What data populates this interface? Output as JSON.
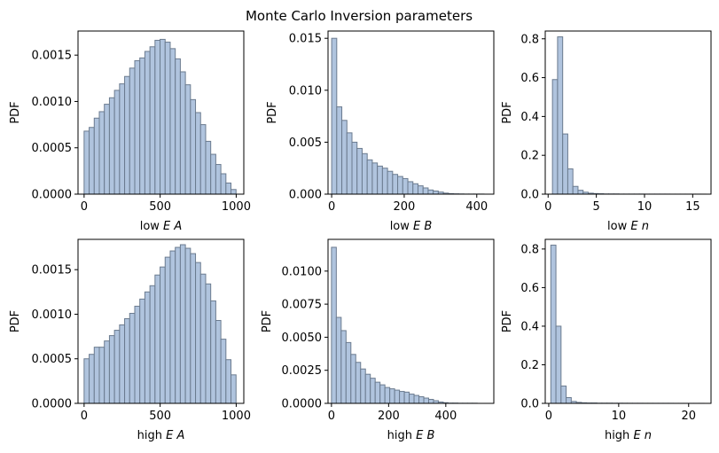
{
  "figure": {
    "title": "Monte Carlo Inversion parameters"
  },
  "style": {
    "bar_fill": "#b0c4de",
    "bar_edge": "#6b7b8f",
    "axis_color": "#000000"
  },
  "chart_data": [
    {
      "type": "bar",
      "ylabel": "PDF",
      "xlabel_plain": "low ",
      "xlabel_italic": "E A",
      "xlim": [
        -40,
        1050
      ],
      "ylim": [
        0,
        0.00176
      ],
      "xticks": [
        0,
        500,
        1000
      ],
      "xtick_labels": [
        "0",
        "500",
        "1000"
      ],
      "yticks": [
        0,
        0.0005,
        0.001,
        0.0015
      ],
      "ytick_labels": [
        "0.0000",
        "0.0005",
        "0.0010",
        "0.0015"
      ],
      "bin_start": 0,
      "bin_width": 33.3,
      "values": [
        0.00068,
        0.00072,
        0.00082,
        0.00089,
        0.00097,
        0.00104,
        0.00112,
        0.00119,
        0.00127,
        0.00136,
        0.00144,
        0.00147,
        0.00154,
        0.00159,
        0.00166,
        0.00167,
        0.00164,
        0.00157,
        0.00146,
        0.00132,
        0.00118,
        0.00102,
        0.00088,
        0.00075,
        0.00057,
        0.00043,
        0.00032,
        0.00022,
        0.00012,
        5e-05
      ]
    },
    {
      "type": "bar",
      "ylabel": "PDF",
      "xlabel_plain": "low ",
      "xlabel_italic": "E B",
      "xlim": [
        -10,
        447
      ],
      "ylim": [
        0,
        0.0157
      ],
      "xticks": [
        0,
        200,
        400
      ],
      "xtick_labels": [
        "0",
        "200",
        "400"
      ],
      "yticks": [
        0,
        0.005,
        0.01,
        0.015
      ],
      "ytick_labels": [
        "0.000",
        "0.005",
        "0.010",
        "0.015"
      ],
      "bin_start": 0,
      "bin_width": 14,
      "values": [
        0.015,
        0.0084,
        0.0071,
        0.0059,
        0.005,
        0.0044,
        0.0039,
        0.0033,
        0.003,
        0.0027,
        0.0025,
        0.0022,
        0.0019,
        0.0017,
        0.0015,
        0.0012,
        0.001,
        0.0008,
        0.0006,
        0.0004,
        0.0003,
        0.0002,
        0.0001,
        5e-05,
        3e-05,
        2e-05,
        1e-05,
        1e-05,
        1e-05,
        1e-05
      ]
    },
    {
      "type": "bar",
      "ylabel": "PDF",
      "xlabel_plain": "low ",
      "xlabel_italic": "E n",
      "xlim": [
        -0.3,
        16.9
      ],
      "ylim": [
        0,
        0.84
      ],
      "xticks": [
        0,
        5,
        10,
        15
      ],
      "xtick_labels": [
        "0",
        "5",
        "10",
        "15"
      ],
      "yticks": [
        0,
        0.2,
        0.4,
        0.6,
        0.8
      ],
      "ytick_labels": [
        "0.0",
        "0.2",
        "0.4",
        "0.6",
        "0.8"
      ],
      "bin_start": 0.45,
      "bin_width": 0.53,
      "values": [
        0.59,
        0.81,
        0.31,
        0.13,
        0.04,
        0.02,
        0.01,
        0.005,
        0.003,
        0.002,
        0.001,
        0.001,
        0.001,
        0.0005,
        0.0005,
        0.0005,
        0.0005,
        0.0005,
        0.0003,
        0.0003,
        0.0003,
        0.0003,
        0.0003,
        0.0002,
        0.0002,
        0.0002,
        0.0002,
        0.0002,
        0.0002,
        0.0002
      ]
    },
    {
      "type": "bar",
      "ylabel": "PDF",
      "xlabel_plain": "high ",
      "xlabel_italic": "E A",
      "xlim": [
        -40,
        1050
      ],
      "ylim": [
        0,
        0.00184
      ],
      "xticks": [
        0,
        500,
        1000
      ],
      "xtick_labels": [
        "0",
        "500",
        "1000"
      ],
      "yticks": [
        0,
        0.0005,
        0.001,
        0.0015
      ],
      "ytick_labels": [
        "0.0000",
        "0.0005",
        "0.0010",
        "0.0015"
      ],
      "bin_start": 0,
      "bin_width": 33.3,
      "values": [
        0.0005,
        0.00055,
        0.00063,
        0.00063,
        0.0007,
        0.00076,
        0.00082,
        0.00088,
        0.00095,
        0.00101,
        0.00109,
        0.00117,
        0.00125,
        0.00132,
        0.00144,
        0.00153,
        0.00164,
        0.00171,
        0.00175,
        0.00178,
        0.00174,
        0.00168,
        0.00158,
        0.00145,
        0.00134,
        0.00115,
        0.00093,
        0.00072,
        0.00049,
        0.00032
      ]
    },
    {
      "type": "bar",
      "ylabel": "PDF",
      "xlabel_plain": "high ",
      "xlabel_italic": "E B",
      "xlim": [
        -12,
        568
      ],
      "ylim": [
        0,
        0.0124
      ],
      "xticks": [
        0,
        200,
        400
      ],
      "xtick_labels": [
        "0",
        "200",
        "400"
      ],
      "yticks": [
        0,
        0.0025,
        0.005,
        0.0075,
        0.01
      ],
      "ytick_labels": [
        "0.0000",
        "0.0025",
        "0.0050",
        "0.0075",
        "0.0100"
      ],
      "bin_start": 0,
      "bin_width": 17,
      "values": [
        0.0118,
        0.0065,
        0.0055,
        0.0046,
        0.0037,
        0.0031,
        0.0026,
        0.0022,
        0.0019,
        0.0016,
        0.0014,
        0.0012,
        0.0011,
        0.001,
        0.0009,
        0.00085,
        0.0007,
        0.0006,
        0.0005,
        0.0004,
        0.0003,
        0.0002,
        0.0001,
        5e-05,
        2e-05,
        2e-05,
        1e-05,
        1e-05,
        1e-05,
        1e-05
      ]
    },
    {
      "type": "bar",
      "ylabel": "PDF",
      "xlabel_plain": "high ",
      "xlabel_italic": "E n",
      "xlim": [
        -0.5,
        23.2
      ],
      "ylim": [
        0,
        0.85
      ],
      "xticks": [
        0,
        10,
        20
      ],
      "xtick_labels": [
        "0",
        "10",
        "20"
      ],
      "yticks": [
        0,
        0.2,
        0.4,
        0.6,
        0.8
      ],
      "ytick_labels": [
        "0.0",
        "0.2",
        "0.4",
        "0.6",
        "0.8"
      ],
      "bin_start": 0.3,
      "bin_width": 0.73,
      "values": [
        0.82,
        0.4,
        0.09,
        0.03,
        0.01,
        0.005,
        0.003,
        0.002,
        0.002,
        0.001,
        0.001,
        0.001,
        0.0008,
        0.0008,
        0.0007,
        0.0006,
        0.0005,
        0.0005,
        0.0004,
        0.0004,
        0.0003,
        0.0003,
        0.0003,
        0.0003,
        0.0002,
        0.0002,
        0.0002,
        0.0002,
        0.0002,
        0.0002
      ]
    }
  ]
}
